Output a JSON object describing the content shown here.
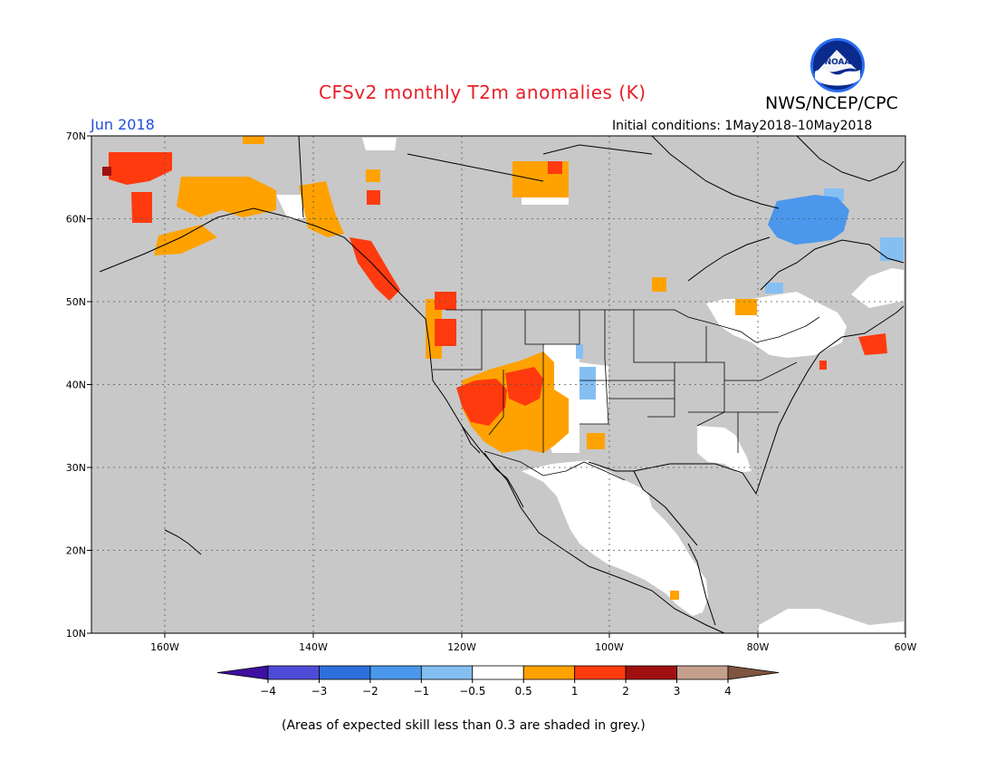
{
  "header": {
    "title": "CFSv2 monthly T2m anomalies (K)",
    "org": "NWS/NCEP/CPC",
    "logo_text": "NOAA",
    "period": "Jun 2018",
    "initial_conditions": "Initial conditions: 1May2018–10May2018"
  },
  "axes": {
    "lon_labels": [
      "160W",
      "140W",
      "120W",
      "100W",
      "80W",
      "60W"
    ],
    "lat_labels": [
      "70N",
      "60N",
      "50N",
      "40N",
      "30N",
      "20N",
      "10N"
    ]
  },
  "legend": {
    "tick_labels": [
      "−4",
      "−3",
      "−2",
      "−1",
      "−0.5",
      "0.5",
      "1",
      "2",
      "3",
      "4"
    ],
    "colors": [
      "#3e0fa0",
      "#4e4cd6",
      "#2d6fdc",
      "#4b97ec",
      "#85bff2",
      "#ffffff",
      "#ffa200",
      "#ff3a0e",
      "#a01010",
      "#c4a08c",
      "#7f5540"
    ]
  },
  "colors": {
    "skill_grey": "#c8c8c8",
    "neutral": "#ffffff",
    "warm_05_1": "#ffa200",
    "warm_1_2": "#ff3a0e",
    "warm_2_3": "#a01010",
    "cool_05_1": "#85bff2",
    "cool_1_2": "#4b97ec"
  },
  "footer": {
    "note": "(Areas of expected skill less than 0.3 are shaded in grey.)"
  }
}
